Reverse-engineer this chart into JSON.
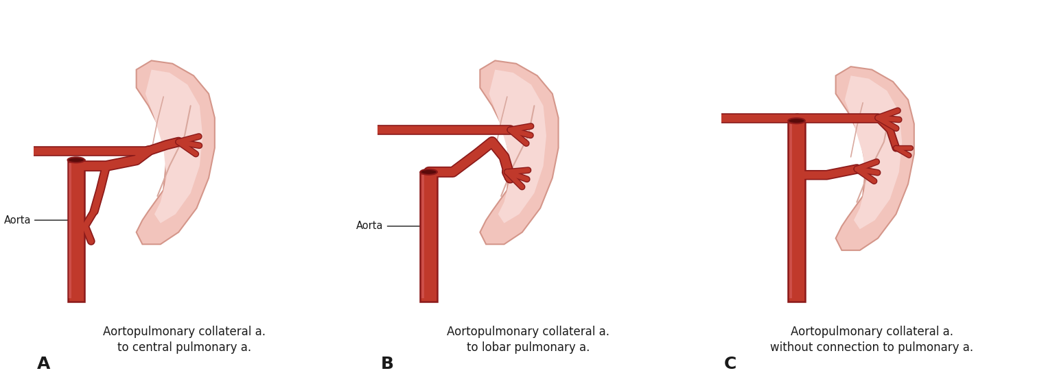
{
  "figsize": [
    15.24,
    5.63
  ],
  "dpi": 100,
  "bg_color": "#ffffff",
  "vessel_color": "#c0392b",
  "vessel_edge": "#8b1a1a",
  "vessel_lw": 9,
  "lung_fill_outer": "#f2c4bc",
  "lung_fill_inner": "#f7d8d4",
  "lung_edge": "#d4968a",
  "lung_fold": "#d9a89e",
  "text_color": "#1a1a1a",
  "labels": [
    "Aortopulmonary collateral a.\nto central pulmonary a.",
    "Aortopulmonary collateral a.\nto lobar pulmonary a.",
    "Aortopulmonary collateral a.\nwithout connection to pulmonary a."
  ],
  "panel_letters": [
    "A",
    "B",
    "C"
  ],
  "aorta_label": "Aorta",
  "label_fontsize": 12,
  "letter_fontsize": 16
}
